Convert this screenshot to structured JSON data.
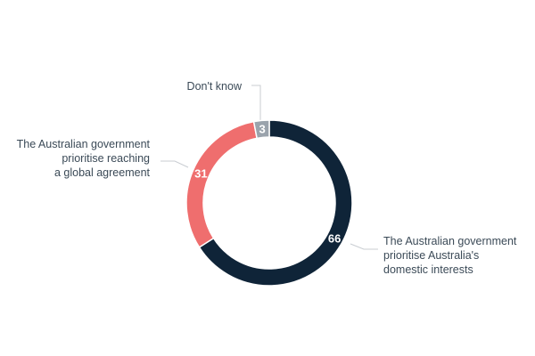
{
  "chart_data": {
    "type": "pie",
    "donut": true,
    "slices": [
      {
        "label_lines": [
          "The Australian government",
          "prioritise Australia's",
          "domestic interests"
        ],
        "value": 66,
        "value_label": "66",
        "color": "#0f2438"
      },
      {
        "label_lines": [
          "The Australian government",
          "prioritise reaching",
          "a global agreement"
        ],
        "value": 31,
        "value_label": "31",
        "color": "#ef6e6e"
      },
      {
        "label_lines": [
          "Don't know"
        ],
        "value": 3,
        "value_label": "3",
        "color": "#9aa3ac"
      }
    ]
  }
}
